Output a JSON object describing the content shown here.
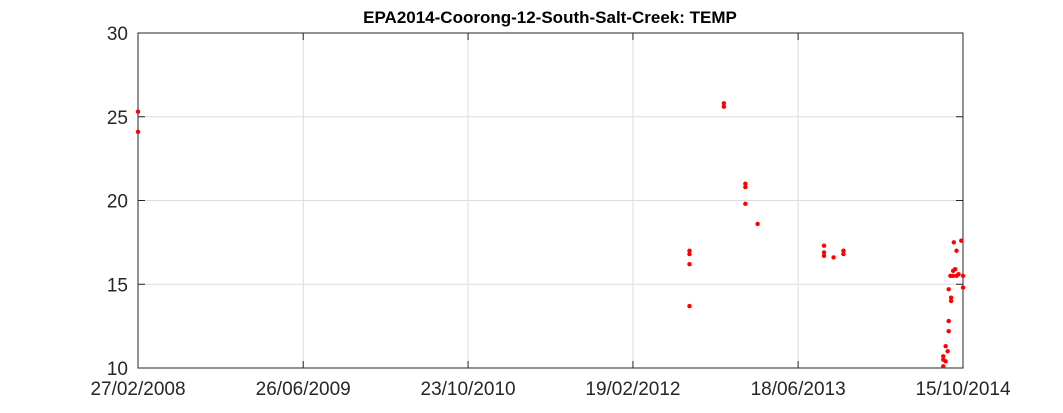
{
  "chart_data": {
    "type": "scatter",
    "title": "EPA2014-Coorong-12-South-Salt-Creek: TEMP",
    "xlabel": "",
    "ylabel": "",
    "x_axis": {
      "type": "date",
      "range": [
        "2008-02-27",
        "2014-10-15"
      ],
      "ticks": [
        {
          "date": "2008-02-27",
          "label": "27/02/2008"
        },
        {
          "date": "2009-06-26",
          "label": "26/06/2009"
        },
        {
          "date": "2010-10-23",
          "label": "23/10/2010"
        },
        {
          "date": "2012-02-19",
          "label": "19/02/2012"
        },
        {
          "date": "2013-06-18",
          "label": "18/06/2013"
        },
        {
          "date": "2014-10-15",
          "label": "15/10/2014"
        }
      ]
    },
    "y_axis": {
      "range": [
        10,
        30
      ],
      "ticks": [
        10,
        15,
        20,
        25,
        30
      ],
      "tick_labels": [
        "10",
        "15",
        "20",
        "25",
        "30"
      ]
    },
    "grid": true,
    "marker_color": "#ff0000",
    "series": [
      {
        "name": "TEMP",
        "points": [
          {
            "x": "2008-02-27",
            "y": 25.3
          },
          {
            "x": "2008-02-27",
            "y": 24.1
          },
          {
            "x": "2012-08-03",
            "y": 17.0
          },
          {
            "x": "2012-08-03",
            "y": 16.8
          },
          {
            "x": "2012-08-03",
            "y": 16.2
          },
          {
            "x": "2012-08-03",
            "y": 13.7
          },
          {
            "x": "2012-11-12",
            "y": 25.8
          },
          {
            "x": "2012-11-12",
            "y": 25.6
          },
          {
            "x": "2013-01-14",
            "y": 21.0
          },
          {
            "x": "2013-01-14",
            "y": 20.8
          },
          {
            "x": "2013-01-14",
            "y": 19.8
          },
          {
            "x": "2013-02-19",
            "y": 18.6
          },
          {
            "x": "2013-09-02",
            "y": 17.3
          },
          {
            "x": "2013-09-02",
            "y": 16.9
          },
          {
            "x": "2013-09-02",
            "y": 16.7
          },
          {
            "x": "2013-09-30",
            "y": 16.6
          },
          {
            "x": "2013-10-29",
            "y": 17.0
          },
          {
            "x": "2013-10-29",
            "y": 16.8
          },
          {
            "x": "2014-08-18",
            "y": 10.7
          },
          {
            "x": "2014-08-18",
            "y": 10.5
          },
          {
            "x": "2014-08-18",
            "y": 10.1
          },
          {
            "x": "2014-08-25",
            "y": 11.3
          },
          {
            "x": "2014-08-25",
            "y": 10.4
          },
          {
            "x": "2014-08-31",
            "y": 11.0
          },
          {
            "x": "2014-09-03",
            "y": 12.8
          },
          {
            "x": "2014-09-03",
            "y": 12.2
          },
          {
            "x": "2014-09-03",
            "y": 14.7
          },
          {
            "x": "2014-09-08",
            "y": 15.5
          },
          {
            "x": "2014-09-10",
            "y": 14.2
          },
          {
            "x": "2014-09-10",
            "y": 14.0
          },
          {
            "x": "2014-09-16",
            "y": 15.8
          },
          {
            "x": "2014-09-16",
            "y": 15.5
          },
          {
            "x": "2014-09-18",
            "y": 17.5
          },
          {
            "x": "2014-09-22",
            "y": 15.9
          },
          {
            "x": "2014-09-26",
            "y": 17.0
          },
          {
            "x": "2014-09-26",
            "y": 15.5
          },
          {
            "x": "2014-10-02",
            "y": 15.6
          },
          {
            "x": "2014-10-10",
            "y": 17.6
          },
          {
            "x": "2014-10-15",
            "y": 15.5
          },
          {
            "x": "2014-10-15",
            "y": 14.8
          }
        ]
      }
    ]
  }
}
